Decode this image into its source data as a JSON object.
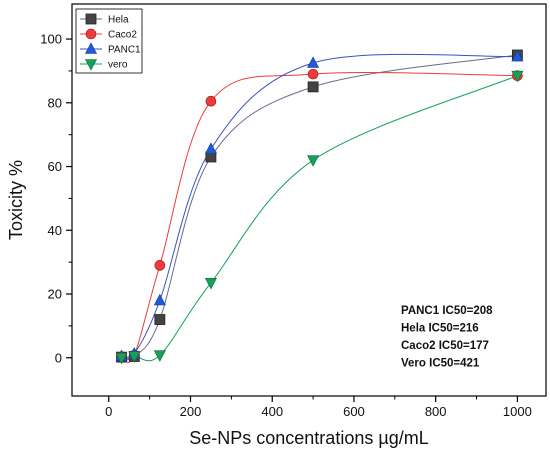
{
  "chart_data": {
    "type": "line",
    "title": "",
    "xlabel": "Se-NPs concentrations µg/mL",
    "ylabel": "Toxicity %",
    "xlim": [
      -90,
      1070
    ],
    "ylim": [
      -12,
      111
    ],
    "xticks": [
      0,
      200,
      400,
      600,
      800,
      1000
    ],
    "yticks": [
      0,
      20,
      40,
      60,
      80,
      100
    ],
    "x": [
      31.25,
      62.5,
      125,
      250,
      500,
      1000
    ],
    "grid": false,
    "legend_position": "top-left",
    "series": [
      {
        "name": "Hela",
        "marker": "square",
        "color": "#444444",
        "line_color": "#6a6a8c",
        "values": [
          0.2,
          0.4,
          12,
          63,
          85,
          95
        ]
      },
      {
        "name": "Caco2",
        "marker": "circle",
        "color": "#ee3b3b",
        "line_color": "#ee3b3b",
        "values": [
          0.3,
          0.8,
          29,
          80.5,
          89,
          88.5
        ]
      },
      {
        "name": "PANC1",
        "marker": "triangle-up",
        "color": "#1f5ad8",
        "line_color": "#3b52c4",
        "values": [
          0.5,
          1.3,
          18,
          65.5,
          92.5,
          94.5
        ]
      },
      {
        "name": "vero",
        "marker": "triangle-down",
        "color": "#16a05a",
        "line_color": "#16a05a",
        "values": [
          0,
          0.5,
          0.8,
          23.5,
          62,
          88.5
        ]
      }
    ],
    "annotations": [
      "PANC1 IC50=208",
      "Hela IC50=216",
      "Caco2  IC50=177",
      "Vero IC50=421"
    ]
  }
}
